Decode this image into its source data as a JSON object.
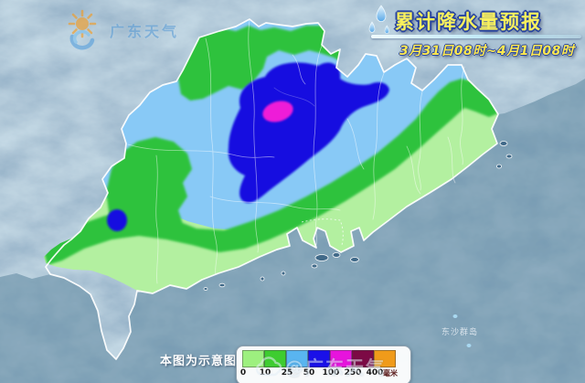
{
  "header": {
    "logo_text": "广东天气",
    "title": "累计降水量预报",
    "date_range": "3月31日08时~4月1日08时"
  },
  "map": {
    "island_label": "东沙群岛",
    "watermark": "@广东天气",
    "palette": {
      "ocean": "#3e6787",
      "terrain": "#6b90b0",
      "rain_0_10": "#b3f0a0",
      "rain_10_25": "#2ec23e",
      "rain_25_50": "#88c9f6",
      "rain_50_100": "#1410e0",
      "rain_100_250": "#ee1fd8"
    }
  },
  "legend": {
    "note": "本图为示意图",
    "unit": "毫米",
    "thresholds": [
      "0",
      "10",
      "25",
      "50",
      "100",
      "250",
      "400"
    ],
    "colors": [
      "#9df07f",
      "#3ecc30",
      "#59b5f0",
      "#1a10e8",
      "#e713dd",
      "#7c0a45",
      "#f09b1a"
    ]
  }
}
